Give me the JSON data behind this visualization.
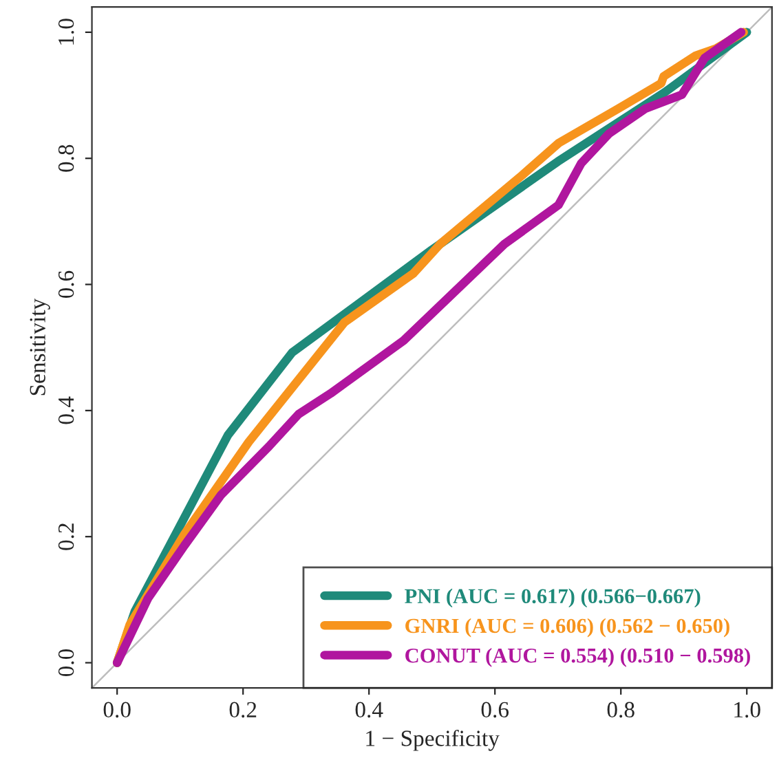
{
  "chart_data": {
    "type": "line",
    "xlabel": "1 − Specificity",
    "ylabel": "Sensitivity",
    "xlim": [
      -0.04,
      1.04
    ],
    "ylim": [
      -0.04,
      1.04
    ],
    "xticks": [
      {
        "value": 0,
        "label": "0.0"
      },
      0.2,
      0.4,
      0.6,
      0.8,
      {
        "value": 1,
        "label": "1.0"
      }
    ],
    "yticks": [
      {
        "value": 0,
        "label": "0.0"
      },
      0.2,
      0.4,
      0.6,
      0.8,
      {
        "value": 1,
        "label": "1.0"
      }
    ],
    "grid": false,
    "legend": "bottom right",
    "marker": "none",
    "line_style": "solid",
    "series": [
      {
        "color": "#bdbdbd",
        "x": [
          -0.04,
          1.04
        ],
        "values": [
          -0.04,
          1.04
        ]
      },
      {
        "name": "PNI (AUC = 0.617) (0.566−0.667)",
        "color": "#1f8a7a",
        "x": [
          0,
          0.028,
          0.176,
          0.278,
          0.5,
          0.7,
          0.87,
          1
        ],
        "values": [
          0,
          0.081,
          0.361,
          0.492,
          0.655,
          0.795,
          0.905,
          1
        ]
      },
      {
        "name": "GNRI (AUC = 0.606) (0.562 − 0.650)",
        "color": "#f7941d",
        "x": [
          0,
          0.02,
          0.107,
          0.209,
          0.361,
          0.47,
          0.513,
          0.643,
          0.701,
          0.796,
          0.864,
          0.868,
          0.919,
          0.951,
          0.995
        ],
        "values": [
          0,
          0.06,
          0.204,
          0.35,
          0.54,
          0.617,
          0.664,
          0.773,
          0.824,
          0.879,
          0.919,
          0.93,
          0.963,
          0.974,
          1.0
        ]
      },
      {
        "name": "CONUT (AUC = 0.554) (0.510 − 0.598)",
        "color": "#b0169e",
        "x": [
          0,
          0.049,
          0.107,
          0.165,
          0.241,
          0.288,
          0.339,
          0.455,
          0.615,
          0.701,
          0.737,
          0.781,
          0.839,
          0.897,
          0.933,
          0.991
        ],
        "values": [
          0,
          0.102,
          0.186,
          0.266,
          0.343,
          0.394,
          0.427,
          0.511,
          0.664,
          0.726,
          0.792,
          0.839,
          0.879,
          0.901,
          0.959,
          1.0
        ]
      }
    ]
  }
}
